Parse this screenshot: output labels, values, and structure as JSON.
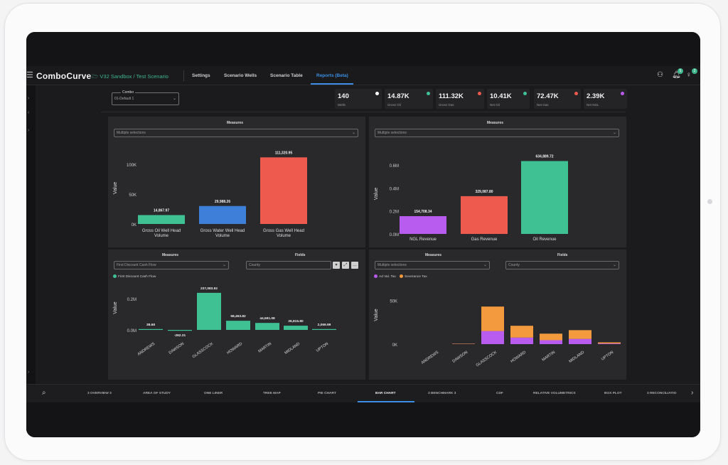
{
  "app": {
    "brand": "ComboCurve",
    "breadcrumb": "V32 Sandbox / Test Scenario",
    "nav": [
      "Settings",
      "Scenario Wells",
      "Scenario Table",
      "Reports (Beta)"
    ],
    "active_nav": "Reports (Beta)",
    "badges": [
      "5",
      "2"
    ]
  },
  "combo": {
    "label": "Combo",
    "value": "01-Default 1"
  },
  "kpis": [
    {
      "value": "140",
      "label": "Wells",
      "dot": "#ffffff"
    },
    {
      "value": "14.87K",
      "label": "Gross Oil",
      "dot": "#3fc194"
    },
    {
      "value": "111.32K",
      "label": "Gross Gas",
      "dot": "#ef5a4f"
    },
    {
      "value": "10.41K",
      "label": "Net Oil",
      "dot": "#3fc194"
    },
    {
      "value": "72.47K",
      "label": "Net Gas",
      "dot": "#ef5a4f"
    },
    {
      "value": "2.39K",
      "label": "Net NGL",
      "dot": "#b85cf0"
    }
  ],
  "panels": {
    "top_left": {
      "title": "Measures",
      "select": "Multiple selections"
    },
    "top_right": {
      "title": "Measures",
      "select": "Multiple selections"
    },
    "bottom_left": {
      "measures_title": "Measures",
      "fields_title": "Fields",
      "measure_select": "First Discount Cash Flow",
      "field_select": "County",
      "legend": "First Discount Cash Flow"
    },
    "bottom_right": {
      "measures_title": "Measures",
      "fields_title": "Fields",
      "measure_select": "Multiple selections",
      "field_select": "County",
      "legend": [
        "Ad Val. Tax",
        "Severance Tax"
      ]
    }
  },
  "bottom_tabs": [
    "3 OVERVIEW 3",
    "AREA OF STUDY",
    "ONE LINER",
    "TREE MAP",
    "PIE CHART",
    "BAR CHART",
    "3 BENCHMARK 3",
    "CDF",
    "RELATIVE VOLUMETRICS",
    "BOX PLOT",
    "3 RECONCILIATIO"
  ],
  "active_tab": "BAR CHART",
  "colors": {
    "green": "#3fc194",
    "blue": "#3d7fd9",
    "red": "#ef5a4f",
    "purple": "#b85cf0",
    "orange": "#f39a3e",
    "accent": "#3b8ee3"
  },
  "chart_data": [
    {
      "type": "bar",
      "ylabel": "Value",
      "categories": [
        "Gross Oil Well Head Volume",
        "Gross Water Well Head Volume",
        "Gross Gas Well Head Volume"
      ],
      "values": [
        14867.97,
        29988.26,
        111320.95
      ],
      "value_labels": [
        "14,867.97",
        "29,988.26",
        "111,320.95"
      ],
      "yticks": [
        "0K",
        "50K",
        "100K"
      ],
      "ylim": [
        0,
        120000
      ]
    },
    {
      "type": "bar",
      "ylabel": "Value",
      "categories": [
        "NGL Revenue",
        "Gas Revenue",
        "Oil Revenue"
      ],
      "values": [
        154708.34,
        329087.8,
        634889.72
      ],
      "value_labels": [
        "154,708.34",
        "329,087.80",
        "634,889.72"
      ],
      "yticks": [
        "0.0M",
        "0.2M",
        "0.4M",
        "0.6M"
      ],
      "ylim": [
        0,
        700000
      ]
    },
    {
      "type": "bar",
      "ylabel": "Value",
      "categories": [
        "ANDREWS",
        "DAWSON",
        "GLASSCOCK",
        "HOWARD",
        "MARTIN",
        "MIDLAND",
        "UPTON"
      ],
      "series": [
        {
          "name": "First Discount Cash Flow",
          "values": [
            38.68,
            -262.31,
            237083.92,
            58453.82,
            44591.08,
            26815.8,
            2069.99
          ]
        }
      ],
      "value_labels": [
        "38.68",
        "-262.31",
        "237,083.92",
        "58,453.82",
        "44,591.08",
        "26,815.80",
        "2,069.99"
      ],
      "yticks": [
        "0.0M",
        "0.2M"
      ],
      "ylim": [
        0,
        300000
      ]
    },
    {
      "type": "bar",
      "stacked": true,
      "ylabel": "Value",
      "categories": [
        "ANDREWS",
        "DAWSON",
        "GLASSCOCK",
        "HOWARD",
        "MARTIN",
        "MIDLAND",
        "UPTON"
      ],
      "series": [
        {
          "name": "Ad Val. Tax",
          "values": [
            0,
            200,
            15000,
            7500,
            4500,
            6000,
            700
          ]
        },
        {
          "name": "Severance Tax",
          "values": [
            0,
            400,
            28000,
            13500,
            7500,
            10000,
            1300
          ]
        }
      ],
      "yticks": [
        "0K",
        "50K"
      ],
      "ylim": [
        0,
        70000
      ]
    }
  ]
}
